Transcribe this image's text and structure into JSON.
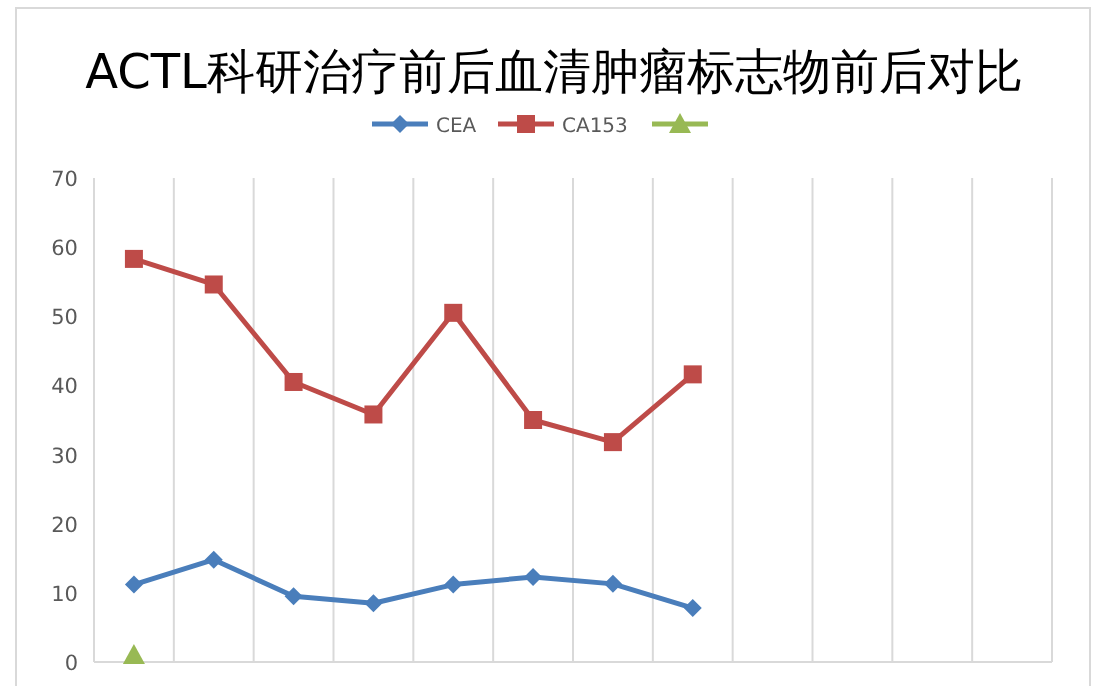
{
  "chart_data": {
    "type": "line",
    "title": "ACTL科研治疗前后血清肿瘤标志物前后对比",
    "categories": [
      null,
      null,
      null,
      null,
      null,
      null,
      null,
      null,
      null,
      null,
      null,
      null
    ],
    "series": [
      {
        "name": "CEA",
        "color": "#4a7ebb",
        "marker": "diamond",
        "values": [
          11.2,
          14.8,
          9.5,
          8.5,
          11.2,
          12.3,
          11.3,
          7.8,
          null,
          null,
          null,
          null
        ]
      },
      {
        "name": "CA153",
        "color": "#be4b48",
        "marker": "square",
        "values": [
          58.3,
          54.6,
          40.5,
          35.8,
          50.5,
          35.0,
          31.8,
          41.6,
          null,
          null,
          null,
          null
        ]
      },
      {
        "color": "#98b954",
        "marker": "triangle",
        "values": [
          1,
          null,
          null,
          null,
          null,
          null,
          null,
          null,
          null,
          null,
          null,
          null
        ]
      }
    ],
    "ylim": [
      0,
      70
    ],
    "yticks": [
      0,
      10,
      20,
      30,
      40,
      50,
      60,
      70
    ],
    "grid": "x",
    "legend": "top",
    "tick_labels": "y"
  }
}
